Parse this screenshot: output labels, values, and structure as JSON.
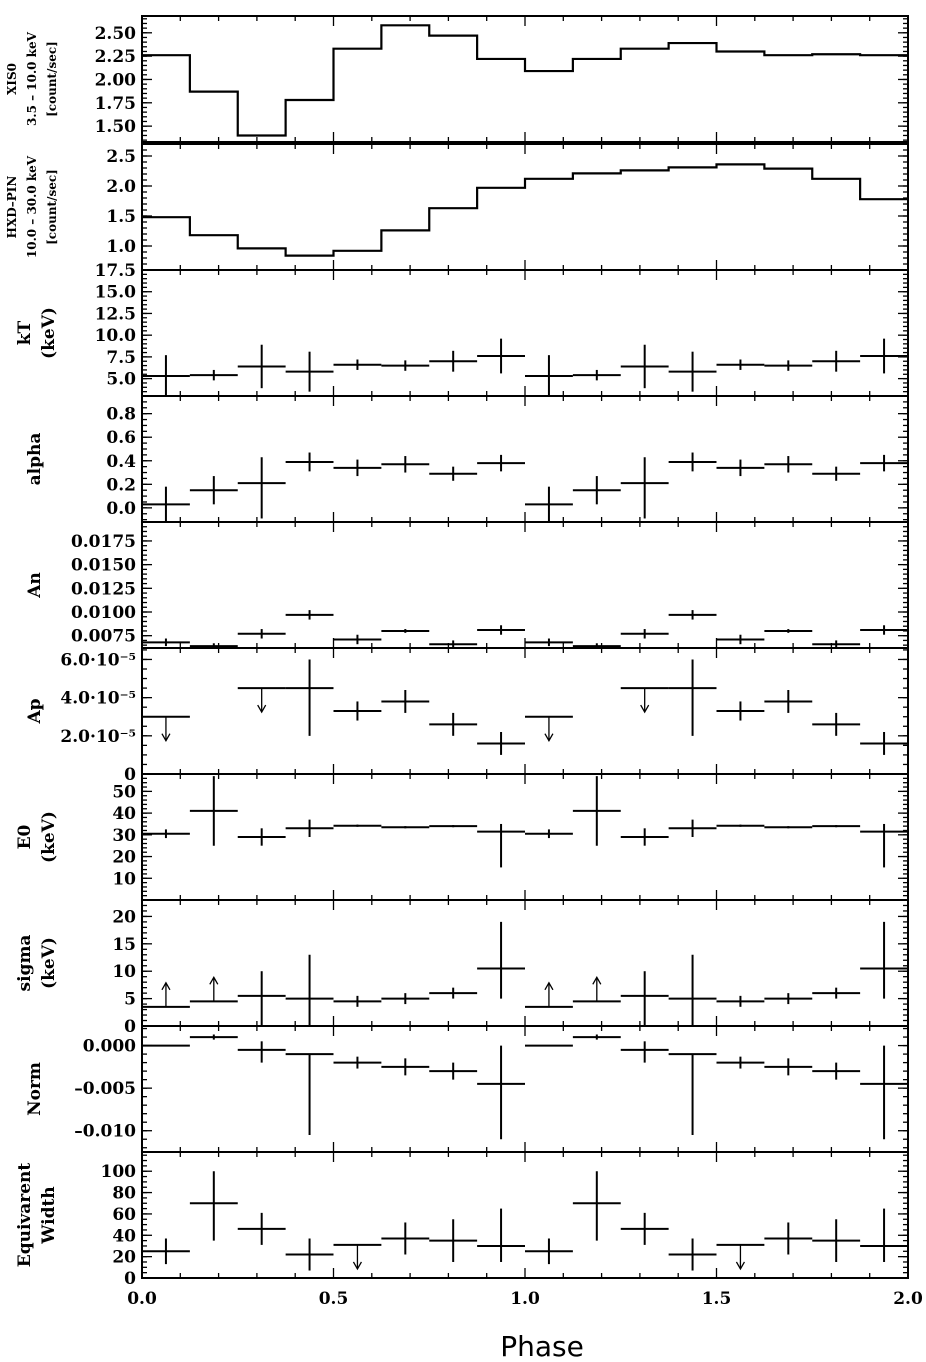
{
  "chart_data": {
    "type": "multi-panel",
    "x_label": "Phase",
    "x_range": [
      0.0,
      2.0
    ],
    "x_tick_labels": [
      "0.0",
      "0.5",
      "1.0",
      "1.5",
      "2.0"
    ],
    "phase_bins": [
      0.0625,
      0.1875,
      0.3125,
      0.4375,
      0.5625,
      0.6875,
      0.8125,
      0.9375
    ],
    "bin_halfwidth": 0.0625,
    "panels": [
      {
        "id": "xis0",
        "type": "step",
        "ylabel_lines": [
          "XIS0",
          "3.5 – 10.0 keV",
          "[count/sec]"
        ],
        "ylim": [
          1.33,
          2.68
        ],
        "tick_labels": [
          "2.50",
          "2.25",
          "2.00",
          "1.75",
          "1.50"
        ],
        "tick_values": [
          2.5,
          2.25,
          2.0,
          1.75,
          1.5
        ],
        "minor_step": 0.05,
        "values": [
          2.26,
          1.87,
          1.4,
          1.78,
          2.33,
          2.58,
          2.47,
          2.22,
          2.09,
          2.22,
          2.33,
          2.39,
          2.3,
          2.26,
          2.27,
          2.26
        ]
      },
      {
        "id": "hxd",
        "type": "step",
        "ylabel_lines": [
          "HXD–PIN",
          "10.0 – 30.0 keV",
          "[count/sec]"
        ],
        "ylim": [
          0.6,
          2.7
        ],
        "tick_labels": [
          "2.5",
          "2.0",
          "1.5",
          "1.0"
        ],
        "tick_values": [
          2.5,
          2.0,
          1.5,
          1.0
        ],
        "minor_step": 0.1,
        "values": [
          1.48,
          1.18,
          0.96,
          0.84,
          0.92,
          1.26,
          1.63,
          1.97,
          2.12,
          2.21,
          2.26,
          2.31,
          2.36,
          2.29,
          2.12,
          1.78,
          1.49
        ]
      },
      {
        "id": "kT",
        "type": "errbar",
        "ylabel_lines": [
          "kT",
          "(keV)"
        ],
        "ylim": [
          3.0,
          17.5
        ],
        "tick_labels": [
          "17.5",
          "15.0",
          "12.5",
          "10.0",
          "7.5",
          "5.0"
        ],
        "tick_values": [
          17.5,
          15.0,
          12.5,
          10.0,
          7.5,
          5.0
        ],
        "minor_step": 0.5,
        "values": [
          5.3,
          5.4,
          6.4,
          5.8,
          6.6,
          6.5,
          7.0,
          7.6
        ],
        "err_lo": [
          2.4,
          0.6,
          2.5,
          2.3,
          0.6,
          0.6,
          1.2,
          2.0
        ],
        "err_hi": [
          2.4,
          0.6,
          2.5,
          2.3,
          0.6,
          0.6,
          1.2,
          2.0
        ],
        "upper_limit": [],
        "lower_limit": []
      },
      {
        "id": "alpha",
        "type": "errbar",
        "ylabel_lines": [
          "alpha"
        ],
        "ylim": [
          -0.12,
          0.95
        ],
        "tick_labels": [
          "0.8",
          "0.6",
          "0.4",
          "0.2",
          "0.0"
        ],
        "tick_values": [
          0.8,
          0.6,
          0.4,
          0.2,
          0.0
        ],
        "minor_step": 0.05,
        "values": [
          0.03,
          0.15,
          0.21,
          0.39,
          0.34,
          0.37,
          0.29,
          0.38
        ],
        "err_lo": [
          0.15,
          0.12,
          0.3,
          0.08,
          0.07,
          0.07,
          0.06,
          0.07
        ],
        "err_hi": [
          0.15,
          0.12,
          0.22,
          0.08,
          0.07,
          0.07,
          0.06,
          0.07
        ],
        "upper_limit": [],
        "lower_limit": []
      },
      {
        "id": "An",
        "type": "errbar",
        "ylabel_lines": [
          "An"
        ],
        "ylim": [
          0.0062,
          0.0195
        ],
        "tick_labels": [
          "0.0175",
          "0.0150",
          "0.0125",
          "0.0100",
          "0.0075"
        ],
        "tick_values": [
          0.0175,
          0.015,
          0.0125,
          0.01,
          0.0075
        ],
        "minor_step": 0.0005,
        "values": [
          0.0068,
          0.0064,
          0.0077,
          0.0097,
          0.0071,
          0.008,
          0.0066,
          0.0081
        ],
        "err_lo": [
          0.0004,
          0.0003,
          0.0005,
          0.0005,
          0.0005,
          0.0002,
          0.0004,
          0.0005
        ],
        "err_hi": [
          0.0004,
          0.0003,
          0.0005,
          0.0005,
          0.0005,
          0.0002,
          0.0004,
          0.0005
        ],
        "upper_limit": [],
        "lower_limit": []
      },
      {
        "id": "Ap",
        "type": "errbar",
        "ylabel_lines": [
          "Ap"
        ],
        "ylim": [
          0.0,
          6.6e-05
        ],
        "tick_labels": [
          "6.0·10⁻⁵",
          "4.0·10⁻⁵",
          "2.0·10⁻⁵",
          "0"
        ],
        "tick_values": [
          6e-05,
          4e-05,
          2e-05,
          0.0
        ],
        "minor_step": 5e-06,
        "values": [
          3e-05,
          0.0,
          4.5e-05,
          4.5e-05,
          3.3e-05,
          3.8e-05,
          2.6e-05,
          1.6e-05
        ],
        "err_lo": [
          0.0,
          0.0,
          0.0,
          2.5e-05,
          5e-06,
          6e-06,
          6e-06,
          6e-06
        ],
        "err_hi": [
          0.0,
          0.0,
          0.0,
          1.5e-05,
          5e-06,
          6e-06,
          6e-06,
          6e-06
        ],
        "upper_limit": [
          0,
          2
        ],
        "lower_limit": [],
        "missing": [
          1
        ]
      },
      {
        "id": "E0",
        "type": "errbar",
        "ylabel_lines": [
          "E0",
          "(keV)"
        ],
        "ylim": [
          0.0,
          58.0
        ],
        "tick_labels": [
          "50",
          "40",
          "30",
          "20",
          "10"
        ],
        "tick_values": [
          50,
          40,
          30,
          20,
          10
        ],
        "minor_step": 2,
        "values": [
          30.5,
          41.0,
          29.0,
          33.0,
          34.2,
          33.5,
          34.0,
          31.5
        ],
        "err_lo": [
          2.0,
          16.0,
          4.0,
          4.0,
          0.5,
          0.5,
          0.5,
          16.5
        ],
        "err_hi": [
          2.0,
          16.0,
          4.0,
          4.0,
          0.5,
          0.5,
          0.5,
          3.5
        ],
        "upper_limit": [],
        "lower_limit": []
      },
      {
        "id": "sigma",
        "type": "errbar",
        "ylabel_lines": [
          "sigma",
          "(keV)"
        ],
        "ylim": [
          0.0,
          23.0
        ],
        "tick_labels": [
          "20",
          "15",
          "10",
          "5",
          "0"
        ],
        "tick_values": [
          20,
          15,
          10,
          5,
          0
        ],
        "minor_step": 1,
        "values": [
          3.5,
          4.5,
          5.5,
          5.0,
          4.5,
          5.0,
          6.0,
          10.5
        ],
        "err_lo": [
          0.0,
          0.0,
          5.5,
          5.0,
          1.0,
          1.0,
          1.0,
          5.5
        ],
        "err_hi": [
          0.0,
          0.0,
          4.5,
          8.0,
          1.0,
          1.0,
          1.0,
          8.5
        ],
        "upper_limit": [],
        "lower_limit": [
          0,
          1
        ]
      },
      {
        "id": "norm",
        "type": "errbar",
        "ylabel_lines": [
          "Norm"
        ],
        "ylim": [
          -0.0125,
          0.0023
        ],
        "tick_labels": [
          "0.000",
          "–0.005",
          "–0.010"
        ],
        "tick_values": [
          0.0,
          -0.005,
          -0.01
        ],
        "minor_step": 0.001,
        "values": [
          0.0,
          0.001,
          -0.0005,
          -0.001,
          -0.002,
          -0.0025,
          -0.003,
          -0.0045
        ],
        "err_lo": [
          0.0,
          0.0003,
          0.0015,
          0.0095,
          0.0007,
          0.001,
          0.001,
          0.0065
        ],
        "err_hi": [
          0.0,
          0.0003,
          0.001,
          0.0,
          0.0007,
          0.001,
          0.001,
          0.0045
        ],
        "upper_limit": [],
        "lower_limit": []
      },
      {
        "id": "ew",
        "type": "errbar",
        "ylabel_lines": [
          "Equivarent",
          "Width"
        ],
        "ylim": [
          0.0,
          118.0
        ],
        "tick_labels": [
          "100",
          "80",
          "60",
          "40",
          "20",
          "0"
        ],
        "tick_values": [
          100,
          80,
          60,
          40,
          20,
          0
        ],
        "minor_step": 5,
        "values": [
          25,
          70,
          46,
          22,
          31,
          37,
          35,
          30
        ],
        "err_lo": [
          12,
          35,
          15,
          15,
          0,
          15,
          20,
          15
        ],
        "err_hi": [
          12,
          30,
          15,
          15,
          0,
          15,
          20,
          35
        ],
        "upper_limit": [
          4
        ],
        "lower_limit": []
      }
    ]
  }
}
